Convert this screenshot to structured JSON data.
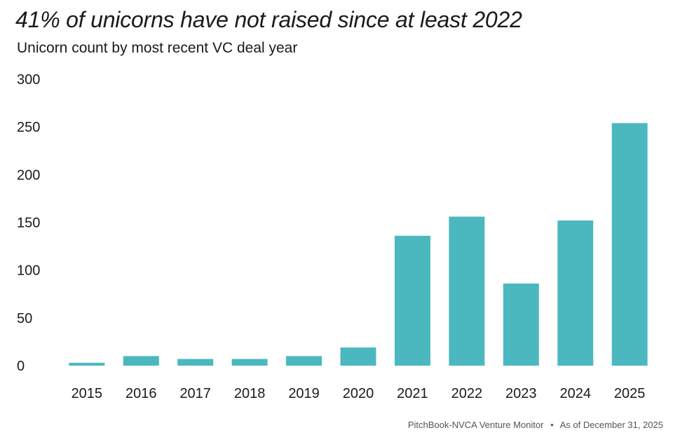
{
  "chart_data": {
    "type": "bar",
    "title": "41% of unicorns have not raised since at least 2022",
    "subtitle": "Unicorn count by most recent VC deal year",
    "xlabel": "",
    "ylabel": "",
    "categories": [
      "2015",
      "2016",
      "2017",
      "2018",
      "2019",
      "2020",
      "2021",
      "2022",
      "2023",
      "2024",
      "2025"
    ],
    "values": [
      3,
      10,
      7,
      7,
      10,
      19,
      136,
      156,
      86,
      152,
      254
    ],
    "ylim": [
      0,
      300
    ],
    "yticks": [
      0,
      50,
      100,
      150,
      200,
      250,
      300
    ],
    "grid": false,
    "legend": "none",
    "bar_color": "#4bb8bf"
  },
  "source": {
    "publisher": "PitchBook-NVCA Venture Monitor",
    "separator": "•",
    "date": "As of December 31, 2025"
  }
}
